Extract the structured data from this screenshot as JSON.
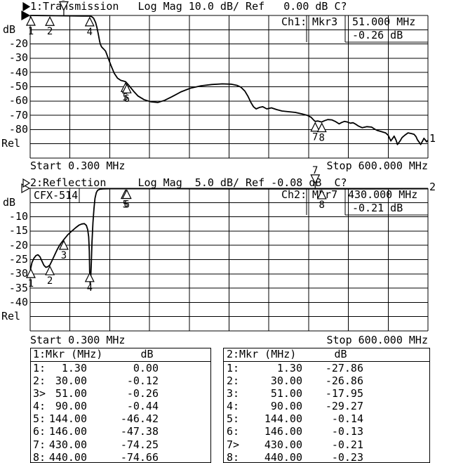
{
  "ui": {
    "chart1": {
      "title": "1:Transmission   Log Mag 10.0 dB/ Ref   0.00 dB C?",
      "title_arrow_icon": "filled-right-triangle",
      "unit_label": "dB",
      "rel_label": "Rel",
      "y_tick_labels": [
        "-20",
        "-30",
        "-40",
        "-50",
        "-60",
        "-70",
        "-80"
      ],
      "start_label": "Start 0.300 MHz",
      "stop_label": "Stop 600.000 MHz",
      "info_ch": "Ch1:",
      "info_mkr": "Mkr3",
      "info_freq": "51.000 MHz",
      "info_value": "-0.26 dB",
      "trace_number": "1"
    },
    "chart2": {
      "title": "2:Reflection     Log Mag  5.0 dB/ Ref -0.08 dB  C?",
      "title_arrow_icon": "hollow-right-triangle",
      "device_label": "CFX-514",
      "unit_label": "dB",
      "rel_label": "Rel",
      "y_tick_labels": [
        "-10",
        "-15",
        "-20",
        "-25",
        "-30",
        "-35",
        "-40"
      ],
      "start_label": "Start 0.300 MHz",
      "stop_label": "Stop 600.000 MHz",
      "info_ch": "Ch2:",
      "info_mkr": "Mkr7",
      "info_freq": "430.000 MHz",
      "info_value": "-0.21 dB",
      "trace_number": "2"
    },
    "tables": [
      {
        "header": "1:Mkr (MHz)      dB",
        "rows": [
          [
            "1:",
            "1.30",
            "0.00"
          ],
          [
            "2:",
            "30.00",
            "-0.12"
          ],
          [
            "3>",
            "51.00",
            "-0.26"
          ],
          [
            "4:",
            "90.00",
            "-0.44"
          ],
          [
            "5:",
            "144.00",
            "-46.42"
          ],
          [
            "6:",
            "146.00",
            "-47.38"
          ],
          [
            "7:",
            "430.00",
            "-74.25"
          ],
          [
            "8:",
            "440.00",
            "-74.66"
          ]
        ]
      },
      {
        "header": "2:Mkr (MHz)      dB",
        "rows": [
          [
            "1:",
            "1.30",
            "-27.86"
          ],
          [
            "2:",
            "30.00",
            "-26.86"
          ],
          [
            "3:",
            "51.00",
            "-17.95"
          ],
          [
            "4:",
            "90.00",
            "-29.27"
          ],
          [
            "5:",
            "144.00",
            "-0.14"
          ],
          [
            "6:",
            "146.00",
            "-0.13"
          ],
          [
            "7>",
            "430.00",
            "-0.21"
          ],
          [
            "8:",
            "440.00",
            "-0.23"
          ]
        ]
      }
    ]
  },
  "chart_data": [
    {
      "type": "line",
      "name": "Transmission",
      "channel": "Ch1",
      "scale_db_per_div": 10.0,
      "ref_db": 0.0,
      "start_mhz": 0.3,
      "stop_mhz": 600.0,
      "ylim": [
        -100,
        0
      ],
      "grid": true,
      "active_marker": 3,
      "markers": [
        {
          "n": 1,
          "mhz": 1.3,
          "db": 0.0
        },
        {
          "n": 2,
          "mhz": 30,
          "db": -0.12
        },
        {
          "n": 3,
          "mhz": 51,
          "db": -0.26,
          "active": true
        },
        {
          "n": 4,
          "mhz": 90,
          "db": -0.44
        },
        {
          "n": 5,
          "mhz": 144,
          "db": -46.42
        },
        {
          "n": 6,
          "mhz": 146,
          "db": -47.38
        },
        {
          "n": 7,
          "mhz": 430,
          "db": -74.25
        },
        {
          "n": 8,
          "mhz": 440,
          "db": -74.66
        }
      ],
      "trace": [
        [
          0.3,
          0
        ],
        [
          20,
          -0.1
        ],
        [
          40,
          -0.2
        ],
        [
          60,
          -0.3
        ],
        [
          80,
          -0.4
        ],
        [
          90,
          -0.45
        ],
        [
          93,
          -0.8
        ],
        [
          96,
          -2
        ],
        [
          99,
          -5
        ],
        [
          101,
          -8.5
        ],
        [
          103,
          -13
        ],
        [
          105,
          -18
        ],
        [
          106,
          -20
        ],
        [
          108,
          -22
        ],
        [
          111,
          -23.5
        ],
        [
          114,
          -25
        ],
        [
          118,
          -30
        ],
        [
          122,
          -35
        ],
        [
          127,
          -40.5
        ],
        [
          132,
          -44
        ],
        [
          137,
          -45.5
        ],
        [
          141,
          -46
        ],
        [
          144,
          -46.4
        ],
        [
          146,
          -47.4
        ],
        [
          150,
          -49.5
        ],
        [
          156,
          -53
        ],
        [
          163,
          -56.5
        ],
        [
          172,
          -59
        ],
        [
          182,
          -60.5
        ],
        [
          193,
          -61
        ],
        [
          203,
          -59.5
        ],
        [
          214,
          -57
        ],
        [
          228,
          -53.5
        ],
        [
          242,
          -51
        ],
        [
          258,
          -49.3
        ],
        [
          274,
          -48.4
        ],
        [
          290,
          -48
        ],
        [
          303,
          -48.2
        ],
        [
          312,
          -49
        ],
        [
          318,
          -50.3
        ],
        [
          324,
          -53
        ],
        [
          329,
          -57
        ],
        [
          333,
          -61
        ],
        [
          337,
          -64
        ],
        [
          341,
          -65.5
        ],
        [
          346,
          -64.5
        ],
        [
          351,
          -64
        ],
        [
          357,
          -65.5
        ],
        [
          364,
          -64.8
        ],
        [
          372,
          -66
        ],
        [
          380,
          -67
        ],
        [
          390,
          -67.5
        ],
        [
          400,
          -68
        ],
        [
          410,
          -69
        ],
        [
          418,
          -70
        ],
        [
          424,
          -71.5
        ],
        [
          428,
          -73.5
        ],
        [
          430,
          -74.3
        ],
        [
          434,
          -74
        ],
        [
          438,
          -74.5
        ],
        [
          440,
          -74.7
        ],
        [
          444,
          -73.8
        ],
        [
          449,
          -73
        ],
        [
          455,
          -73.2
        ],
        [
          461,
          -74.5
        ],
        [
          466,
          -76
        ],
        [
          470,
          -75
        ],
        [
          474,
          -74.3
        ],
        [
          479,
          -74.8
        ],
        [
          483,
          -75.5
        ],
        [
          487,
          -75.2
        ],
        [
          491,
          -76.2
        ],
        [
          495,
          -77.5
        ],
        [
          501,
          -78.7
        ],
        [
          508,
          -78
        ],
        [
          515,
          -78.3
        ],
        [
          520,
          -79.8
        ],
        [
          524,
          -80.7
        ],
        [
          530,
          -81.5
        ],
        [
          536,
          -82.3
        ],
        [
          540,
          -84
        ],
        [
          544,
          -88
        ],
        [
          547,
          -86
        ],
        [
          549,
          -84.6
        ],
        [
          552,
          -87.5
        ],
        [
          554,
          -90.5
        ],
        [
          558,
          -88
        ],
        [
          561,
          -85.6
        ],
        [
          565,
          -84
        ],
        [
          570,
          -82.3
        ],
        [
          575,
          -82.8
        ],
        [
          579,
          -83.3
        ],
        [
          582,
          -85
        ],
        [
          584,
          -87.1
        ],
        [
          587,
          -89
        ],
        [
          589,
          -90.5
        ],
        [
          592,
          -88
        ],
        [
          594,
          -86.1
        ],
        [
          596,
          -87.3
        ],
        [
          598,
          -88.6
        ],
        [
          600,
          -87.5
        ]
      ]
    },
    {
      "type": "line",
      "name": "Reflection",
      "channel": "Ch2",
      "scale_db_per_div": 5.0,
      "ref_db": -0.08,
      "start_mhz": 0.3,
      "stop_mhz": 600.0,
      "ylim": [
        -50,
        0
      ],
      "grid": true,
      "active_marker": 7,
      "markers": [
        {
          "n": 1,
          "mhz": 1.3,
          "db": -27.86
        },
        {
          "n": 2,
          "mhz": 30,
          "db": -26.86
        },
        {
          "n": 3,
          "mhz": 51,
          "db": -17.95
        },
        {
          "n": 4,
          "mhz": 90,
          "db": -29.27
        },
        {
          "n": 5,
          "mhz": 144,
          "db": -0.14
        },
        {
          "n": 6,
          "mhz": 146,
          "db": -0.13
        },
        {
          "n": 7,
          "mhz": 430,
          "db": -0.21,
          "active": true
        },
        {
          "n": 8,
          "mhz": 440,
          "db": -0.23
        }
      ],
      "trace": [
        [
          0.3,
          -29.5
        ],
        [
          1.3,
          -27.9
        ],
        [
          3,
          -26
        ],
        [
          6,
          -24.5
        ],
        [
          9,
          -23.6
        ],
        [
          12,
          -23.3
        ],
        [
          15,
          -24
        ],
        [
          18,
          -25.5
        ],
        [
          21,
          -27
        ],
        [
          24,
          -27.7
        ],
        [
          27,
          -27.5
        ],
        [
          30,
          -26.9
        ],
        [
          33,
          -25.5
        ],
        [
          37,
          -23.5
        ],
        [
          41,
          -21.5
        ],
        [
          45,
          -19.8
        ],
        [
          51,
          -18
        ],
        [
          57,
          -16.3
        ],
        [
          63,
          -15
        ],
        [
          69,
          -13.8
        ],
        [
          74,
          -12.9
        ],
        [
          78,
          -12.5
        ],
        [
          82,
          -12.4
        ],
        [
          85,
          -13
        ],
        [
          87,
          -14.5
        ],
        [
          88.5,
          -17
        ],
        [
          89.5,
          -22
        ],
        [
          90,
          -29.3
        ],
        [
          90.7,
          -33.5
        ],
        [
          91.5,
          -32
        ],
        [
          92.5,
          -26
        ],
        [
          93.5,
          -19
        ],
        [
          95,
          -12
        ],
        [
          96.5,
          -7
        ],
        [
          98,
          -3.5
        ],
        [
          100,
          -1.5
        ],
        [
          102,
          -0.7
        ],
        [
          105,
          -0.35
        ],
        [
          110,
          -0.2
        ],
        [
          120,
          -0.16
        ],
        [
          144,
          -0.14
        ],
        [
          146,
          -0.13
        ],
        [
          170,
          -0.15
        ],
        [
          200,
          -0.16
        ],
        [
          250,
          -0.18
        ],
        [
          300,
          -0.19
        ],
        [
          350,
          -0.2
        ],
        [
          400,
          -0.2
        ],
        [
          430,
          -0.21
        ],
        [
          440,
          -0.23
        ],
        [
          460,
          -0.22
        ],
        [
          500,
          -0.2
        ],
        [
          550,
          -0.17
        ],
        [
          600,
          -0.14
        ]
      ]
    }
  ]
}
